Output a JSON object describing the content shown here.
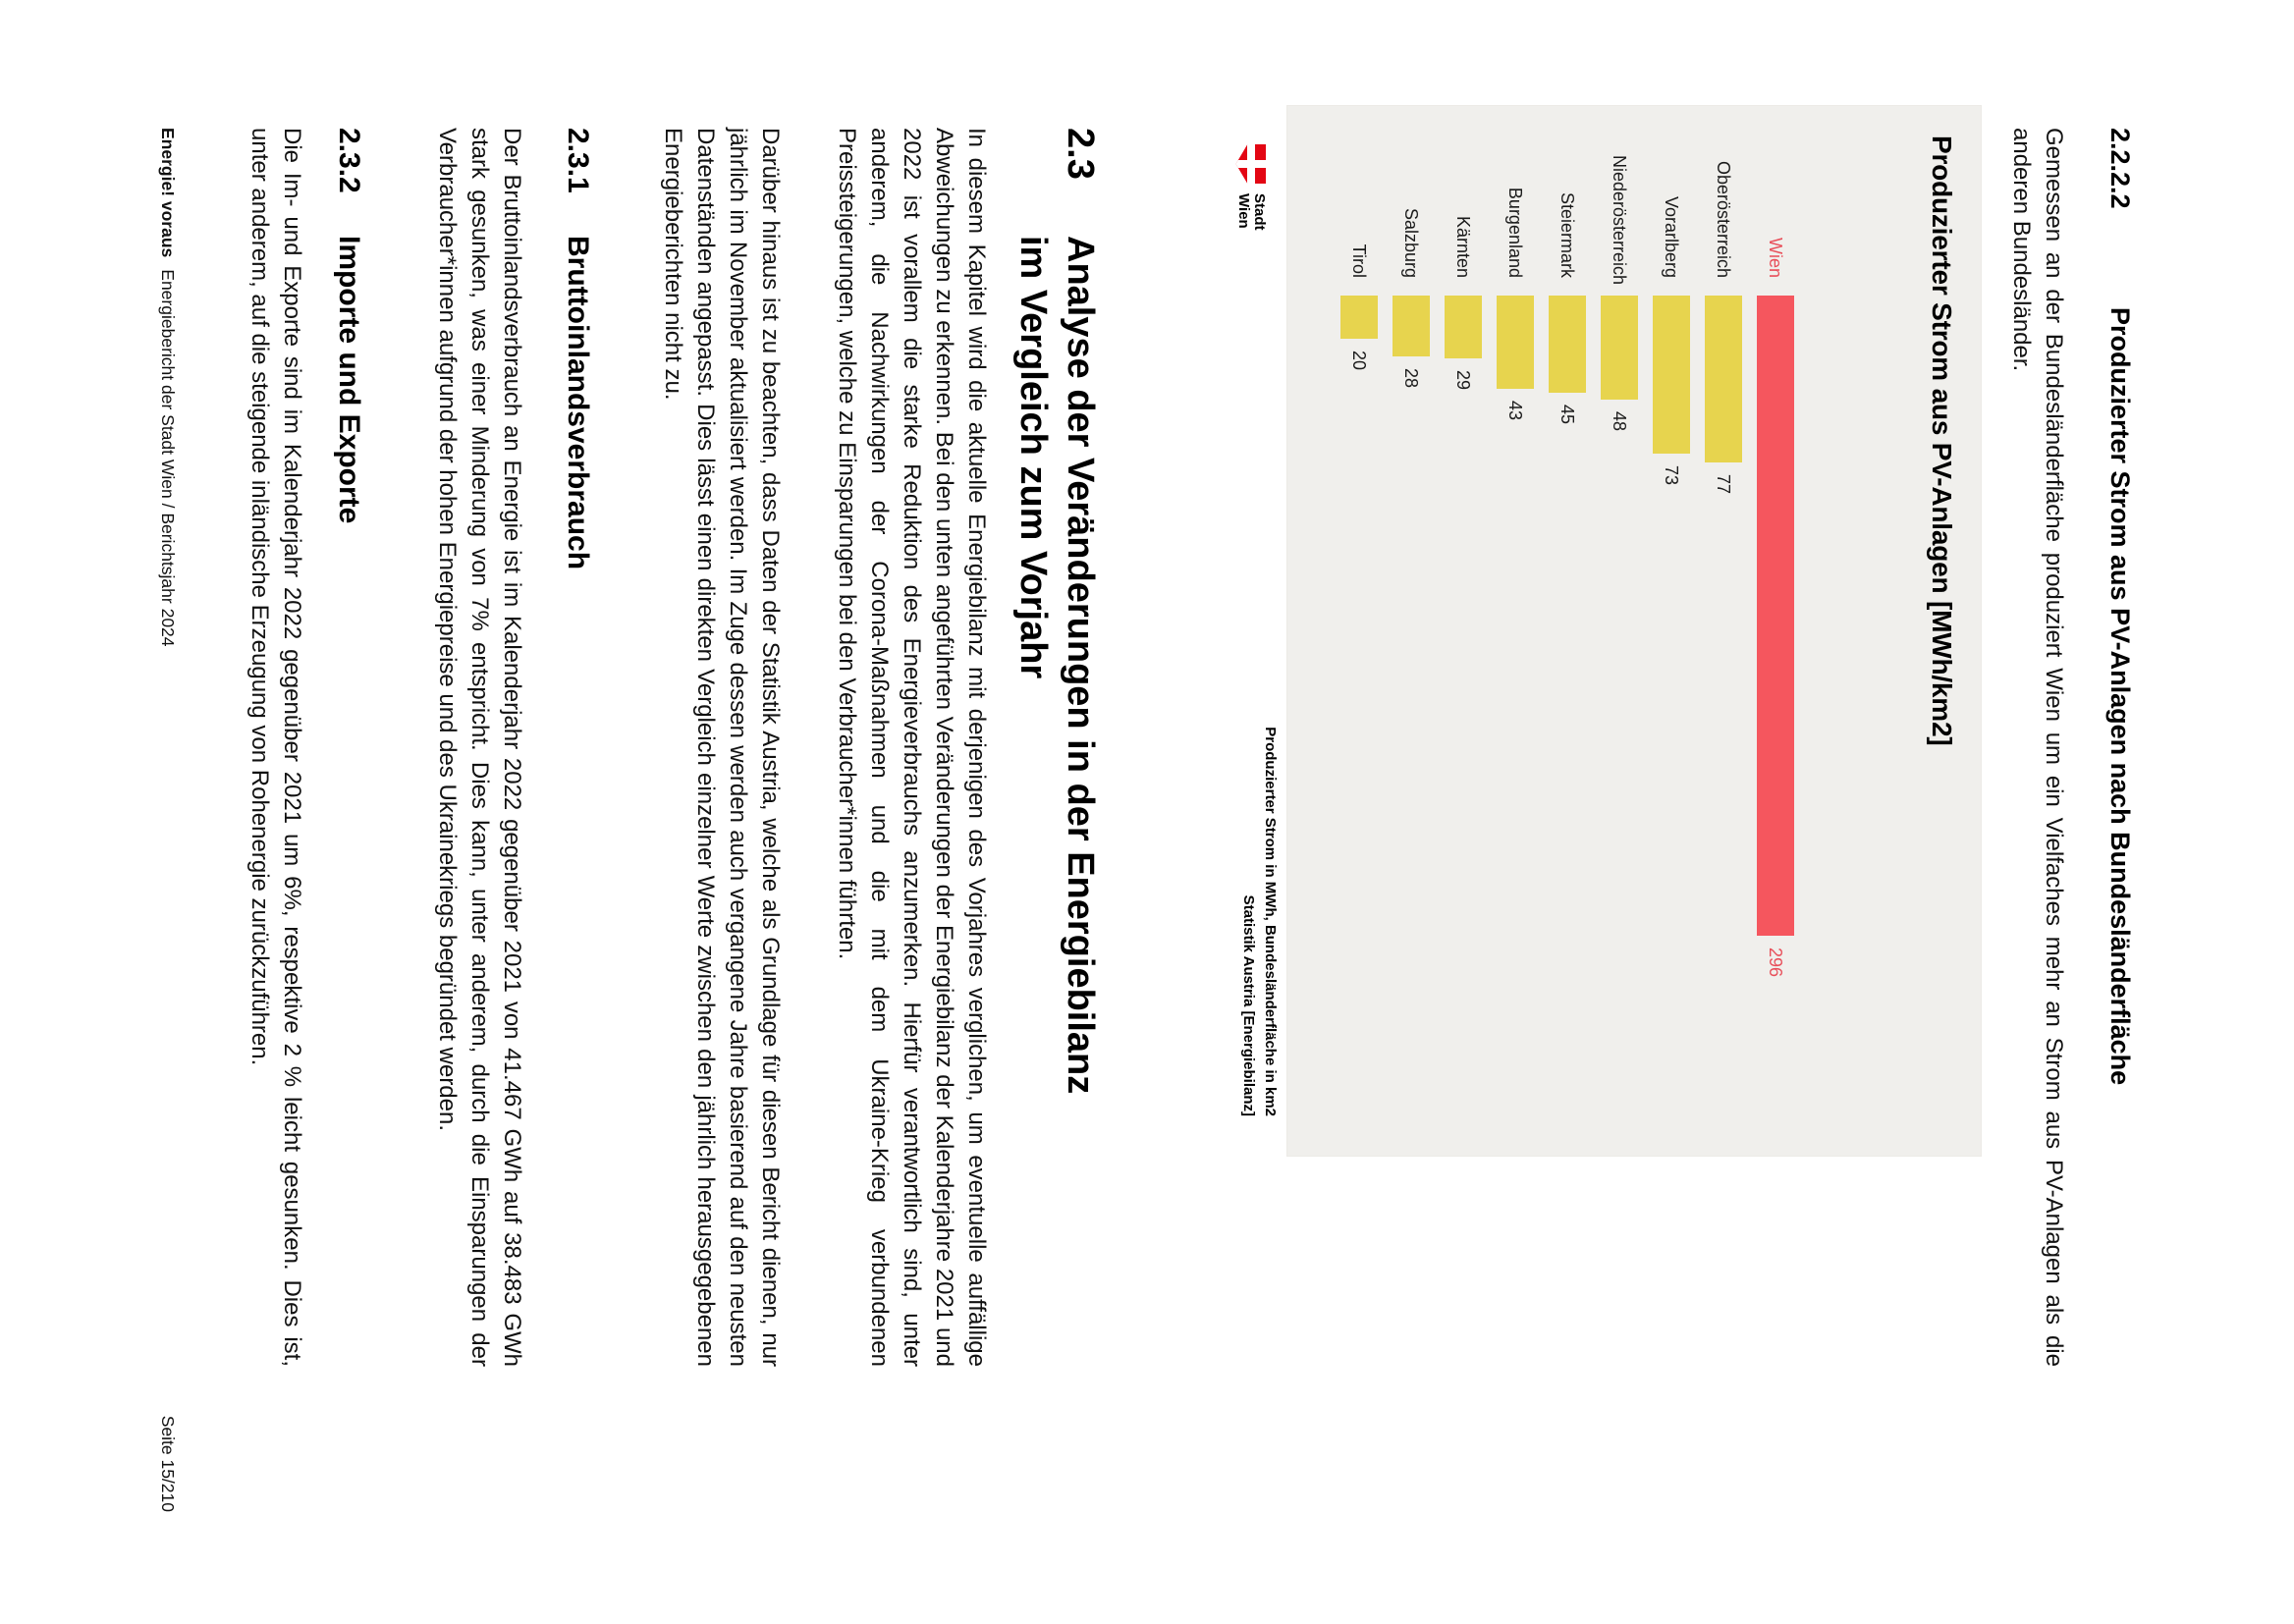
{
  "document": {
    "heading": {
      "number": "2.2.2.2",
      "title": "Produzierter Strom aus PV-Anlagen nach Bundesländerfläche"
    },
    "intro": "Gemessen an der Bundesländerfläche produziert Wien um ein Vielfaches mehr an Strom aus PV-Anlagen als die anderen Bundesländer.",
    "logo": {
      "line1": "Stadt",
      "line2": "Wien"
    },
    "section": {
      "number": "2.3",
      "title_line1": "Analyse der Veränderungen in der Energiebilanz",
      "title_line2": "im Vergleich zum Vorjahr",
      "paragraph1": "In diesem Kapitel wird die aktuelle Energiebilanz mit derjenigen des Vorjahres verglichen, um eventuelle auffällige Abweichungen zu erkennen. Bei den unten angeführten Veränderungen der Energiebilanz der Kalenderjahre 2021 und 2022 ist vorallem die starke Reduktion des Energieverbrauchs anzumerken. Hierfür verantwortlich sind, unter anderem, die Nachwirkungen der Corona-Maßnahmen und die mit dem Ukraine-Krieg verbundenen Preissteigerungen, welche zu Einsparungen bei den Verbraucher*innen führten.",
      "paragraph2": "Darüber hinaus ist zu beachten, dass Daten der Statistik Austria, welche als Grundlage für diesen Bericht dienen, nur jährlich im November aktualisiert werden. Im Zuge dessen werden auch vergangene Jahre basierend auf den neusten Datenständen angepasst. Dies lässt einen direkten Vergleich einzelner Werte zwischen den jährlich herausgegebenen Energieberichten nicht zu."
    },
    "subsection1": {
      "number": "2.3.1",
      "title": "Bruttoinlandsverbrauch",
      "paragraph": "Der Bruttoinlandsverbrauch an Energie ist im Kalenderjahr 2022 gegenüber 2021 von 41.467 GWh auf 38.483 GWh stark gesunken, was einer Minderung von 7% entspricht. Dies kann, unter anderem, durch die Einsparungen der Verbraucher*innen aufgrund der hohen Energiepreise und des Ukrainekriegs begründet werden."
    },
    "subsection2": {
      "number": "2.3.2",
      "title": "Importe und Exporte",
      "paragraph": "Die Im- und Exporte sind im Kalenderjahr 2022 gegenüber 2021 um 6%, respektive 2 % leicht gesunken. Dies ist, unter anderem, auf die steigende inländische Erzeugung von Rohenergie zurückzuführen."
    },
    "footer": {
      "brand": "Energie! voraus",
      "text": "Energiebericht der Stadt Wien / Berichtsjahr 2024",
      "page": "Seite 15/210"
    }
  },
  "chart_data": {
    "type": "bar",
    "orientation": "horizontal",
    "title": "Produzierter Strom aus PV-Anlagen [MWh/km2]",
    "categories": [
      "Wien",
      "Oberösterreich",
      "Vorarlberg",
      "Niederösterreich",
      "Steiermark",
      "Burgenland",
      "Kärnten",
      "Salzburg",
      "Tirol"
    ],
    "values": [
      296,
      77,
      73,
      48,
      45,
      43,
      29,
      28,
      20
    ],
    "xlim": [
      0,
      300
    ],
    "value_labels": true,
    "legend": false,
    "grid": false,
    "highlight_category": "Wien",
    "bar_color": "#e7d44e",
    "highlight_color": "#f5565e",
    "highlight_text_color": "#e84e59",
    "plot_background": "#f0efec",
    "caption_line1": "Produzierter Strom in MWh, Bundesländerfläche in km2",
    "caption_line2": "Statistik Austria [Energiebilanz]"
  }
}
